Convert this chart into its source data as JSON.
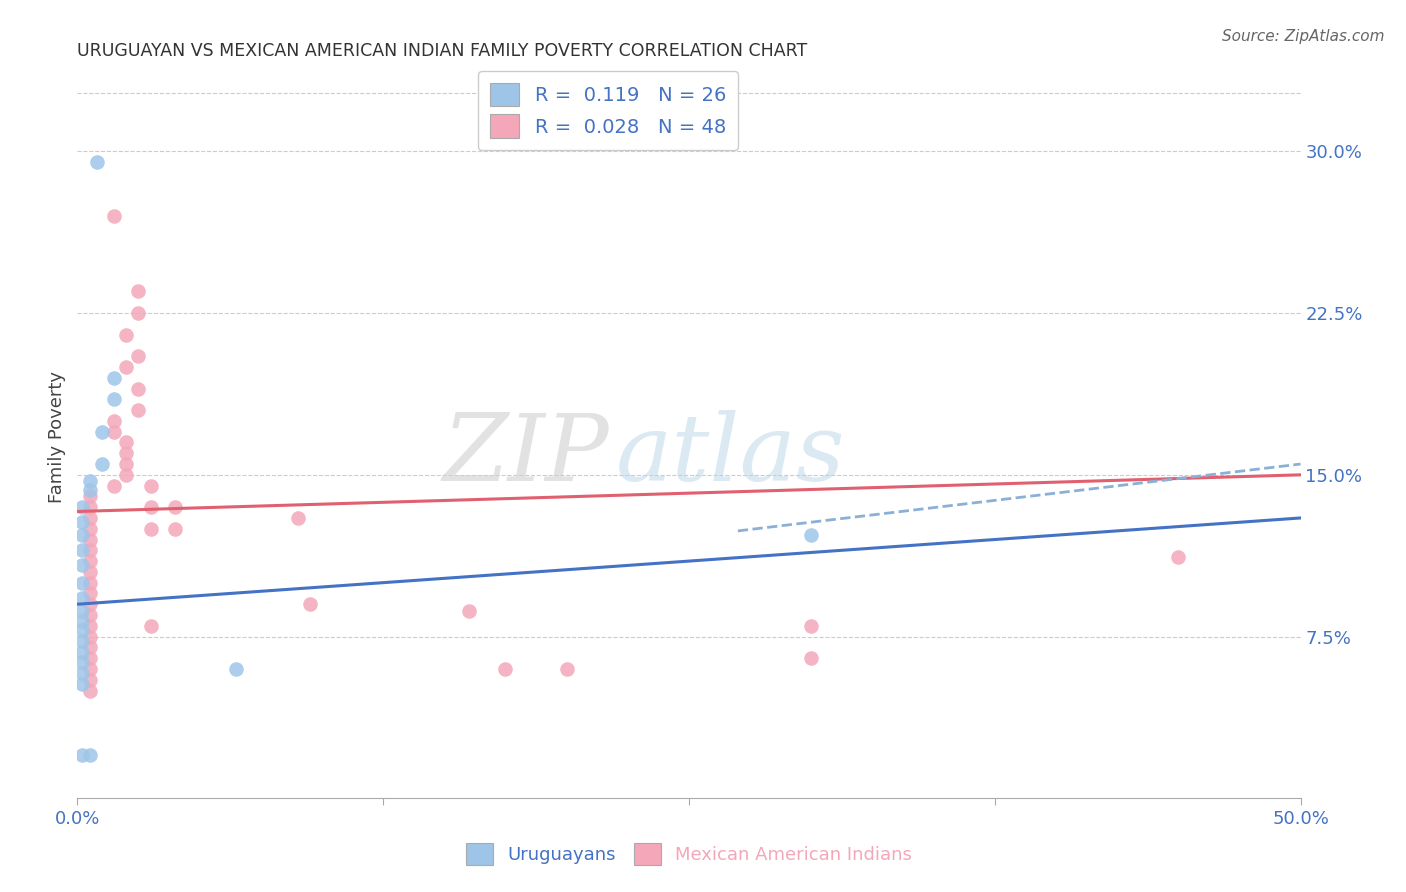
{
  "title": "URUGUAYAN VS MEXICAN AMERICAN INDIAN FAMILY POVERTY CORRELATION CHART",
  "source": "Source: ZipAtlas.com",
  "ylabel": "Family Poverty",
  "yticks": [
    0.075,
    0.15,
    0.225,
    0.3
  ],
  "ytick_labels": [
    "7.5%",
    "15.0%",
    "22.5%",
    "30.0%"
  ],
  "xlim": [
    0.0,
    0.5
  ],
  "ylim": [
    0.0,
    0.335
  ],
  "watermark_zip": "ZIP",
  "watermark_atlas": "atlas",
  "uruguayan_R": "0.119",
  "uruguayan_N": "26",
  "mexican_R": "0.028",
  "mexican_N": "48",
  "uruguayan_points": [
    [
      0.008,
      0.295
    ],
    [
      0.015,
      0.195
    ],
    [
      0.015,
      0.185
    ],
    [
      0.01,
      0.17
    ],
    [
      0.01,
      0.155
    ],
    [
      0.005,
      0.147
    ],
    [
      0.005,
      0.143
    ],
    [
      0.002,
      0.135
    ],
    [
      0.002,
      0.128
    ],
    [
      0.002,
      0.122
    ],
    [
      0.002,
      0.115
    ],
    [
      0.002,
      0.108
    ],
    [
      0.002,
      0.1
    ],
    [
      0.002,
      0.093
    ],
    [
      0.002,
      0.087
    ],
    [
      0.002,
      0.082
    ],
    [
      0.002,
      0.078
    ],
    [
      0.002,
      0.073
    ],
    [
      0.002,
      0.068
    ],
    [
      0.002,
      0.063
    ],
    [
      0.002,
      0.058
    ],
    [
      0.002,
      0.053
    ],
    [
      0.3,
      0.122
    ],
    [
      0.002,
      0.02
    ],
    [
      0.005,
      0.02
    ],
    [
      0.065,
      0.06
    ]
  ],
  "mexican_points": [
    [
      0.015,
      0.27
    ],
    [
      0.025,
      0.235
    ],
    [
      0.025,
      0.225
    ],
    [
      0.02,
      0.215
    ],
    [
      0.025,
      0.205
    ],
    [
      0.02,
      0.2
    ],
    [
      0.025,
      0.19
    ],
    [
      0.025,
      0.18
    ],
    [
      0.015,
      0.175
    ],
    [
      0.015,
      0.17
    ],
    [
      0.02,
      0.165
    ],
    [
      0.02,
      0.16
    ],
    [
      0.02,
      0.155
    ],
    [
      0.02,
      0.15
    ],
    [
      0.015,
      0.145
    ],
    [
      0.005,
      0.14
    ],
    [
      0.005,
      0.135
    ],
    [
      0.005,
      0.13
    ],
    [
      0.005,
      0.125
    ],
    [
      0.005,
      0.12
    ],
    [
      0.005,
      0.115
    ],
    [
      0.005,
      0.11
    ],
    [
      0.005,
      0.105
    ],
    [
      0.005,
      0.1
    ],
    [
      0.005,
      0.095
    ],
    [
      0.005,
      0.09
    ],
    [
      0.005,
      0.085
    ],
    [
      0.005,
      0.08
    ],
    [
      0.005,
      0.075
    ],
    [
      0.005,
      0.07
    ],
    [
      0.005,
      0.065
    ],
    [
      0.005,
      0.06
    ],
    [
      0.005,
      0.055
    ],
    [
      0.005,
      0.05
    ],
    [
      0.03,
      0.145
    ],
    [
      0.03,
      0.135
    ],
    [
      0.03,
      0.125
    ],
    [
      0.03,
      0.08
    ],
    [
      0.04,
      0.135
    ],
    [
      0.04,
      0.125
    ],
    [
      0.09,
      0.13
    ],
    [
      0.095,
      0.09
    ],
    [
      0.16,
      0.087
    ],
    [
      0.175,
      0.06
    ],
    [
      0.2,
      0.06
    ],
    [
      0.3,
      0.065
    ],
    [
      0.45,
      0.112
    ],
    [
      0.3,
      0.08
    ]
  ],
  "uruguayan_line": [
    0.0,
    0.09,
    0.5,
    0.13
  ],
  "mexican_line": [
    0.0,
    0.133,
    0.5,
    0.15
  ],
  "uruguayan_dashed_line": [
    0.27,
    0.124,
    0.5,
    0.155
  ],
  "background_color": "#ffffff",
  "grid_color": "#cccccc",
  "point_size": 110,
  "uruguayan_color": "#9ec5e8",
  "mexican_color": "#f4a7b9",
  "uruguayan_line_color": "#4472c4",
  "mexican_line_color": "#e06070",
  "dashed_line_color": "#8ab0d8",
  "axis_label_color": "#4472c4",
  "title_color": "#333333",
  "source_color": "#666666"
}
